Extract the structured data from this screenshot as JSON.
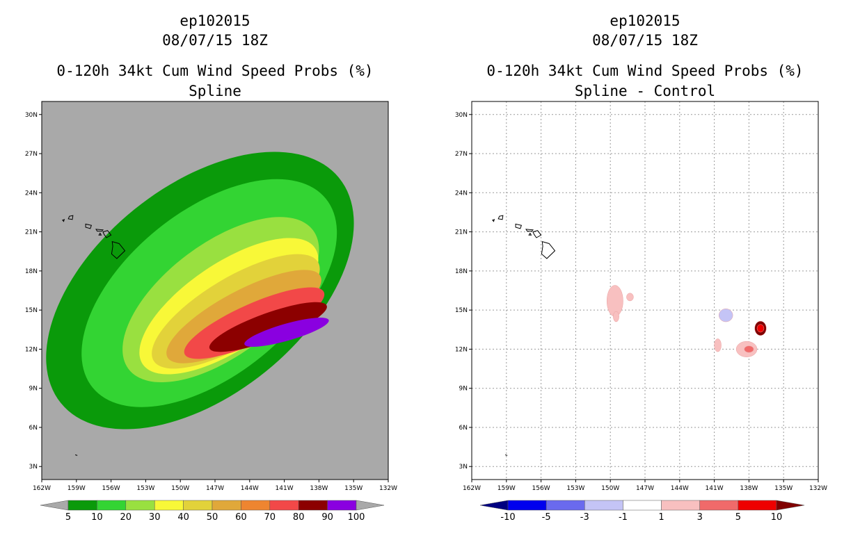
{
  "chart_data": [
    {
      "type": "heatmap",
      "storm_id": "ep102015",
      "datetime": "08/07/15 18Z",
      "title": "0-120h 34kt Cum Wind Speed Probs (%)",
      "subtitle": "Spline",
      "xlabel": "",
      "ylabel": "",
      "xlim": [
        -162,
        -132
      ],
      "ylim": [
        2,
        31
      ],
      "xticks": [
        "162W",
        "159W",
        "156W",
        "153W",
        "150W",
        "147W",
        "144W",
        "141W",
        "138W",
        "135W",
        "132W"
      ],
      "yticks": [
        "3N",
        "6N",
        "9N",
        "12N",
        "15N",
        "18N",
        "21N",
        "24N",
        "27N",
        "30N"
      ],
      "grid": false,
      "background": "#a9a9a9",
      "colorbar": {
        "levels": [
          "5",
          "10",
          "20",
          "30",
          "40",
          "50",
          "60",
          "70",
          "80",
          "90",
          "100"
        ],
        "colors": [
          "#a9a9a9",
          "#0a9a0a",
          "#33d433",
          "#99e040",
          "#f8f838",
          "#e2d23a",
          "#e0a83a",
          "#ee8530",
          "#f24848",
          "#8c0000",
          "#8a00e0",
          "#a9a9a9"
        ]
      },
      "contours": [
        {
          "level": 5,
          "color": "#0a9a0a",
          "center_lon": -148.3,
          "center_lat": 16.5,
          "semi_major_deg": 15.5,
          "semi_minor_deg": 8.0,
          "angle_deg": -39
        },
        {
          "level": 10,
          "color": "#33d433",
          "center_lon": -147.5,
          "center_lat": 16.3,
          "semi_major_deg": 13.0,
          "semi_minor_deg": 6.3,
          "angle_deg": -39
        },
        {
          "level": 20,
          "color": "#99e040",
          "center_lon": -146.5,
          "center_lat": 15.8,
          "semi_major_deg": 10.0,
          "semi_minor_deg": 4.3,
          "angle_deg": -37
        },
        {
          "level": 30,
          "color": "#f8f838",
          "center_lon": -145.8,
          "center_lat": 15.3,
          "semi_major_deg": 9.0,
          "semi_minor_deg": 3.3,
          "angle_deg": -34
        },
        {
          "level": 40,
          "color": "#e2d23a",
          "center_lon": -145.2,
          "center_lat": 14.9,
          "semi_major_deg": 8.3,
          "semi_minor_deg": 2.6,
          "angle_deg": -31
        },
        {
          "level": 50,
          "color": "#e0a83a",
          "center_lon": -144.5,
          "center_lat": 14.5,
          "semi_major_deg": 7.5,
          "semi_minor_deg": 2.0,
          "angle_deg": -28
        },
        {
          "level": 70,
          "color": "#f24848",
          "center_lon": -143.6,
          "center_lat": 14.0,
          "semi_major_deg": 6.6,
          "semi_minor_deg": 1.5,
          "angle_deg": -24
        },
        {
          "level": 80,
          "color": "#8c0000",
          "center_lon": -142.4,
          "center_lat": 13.7,
          "semi_major_deg": 5.4,
          "semi_minor_deg": 1.05,
          "angle_deg": -20
        },
        {
          "level": 90,
          "color": "#8a00e0",
          "center_lon": -140.8,
          "center_lat": 13.3,
          "semi_major_deg": 3.8,
          "semi_minor_deg": 0.65,
          "angle_deg": -16
        }
      ]
    },
    {
      "type": "heatmap",
      "storm_id": "ep102015",
      "datetime": "08/07/15 18Z",
      "title": "0-120h 34kt Cum Wind Speed Probs (%)",
      "subtitle": "Spline - Control",
      "xlabel": "",
      "ylabel": "",
      "xlim": [
        -162,
        -132
      ],
      "ylim": [
        2,
        31
      ],
      "xticks": [
        "162W",
        "159W",
        "156W",
        "153W",
        "150W",
        "147W",
        "144W",
        "141W",
        "138W",
        "135W",
        "132W"
      ],
      "yticks": [
        "3N",
        "6N",
        "9N",
        "12N",
        "15N",
        "18N",
        "21N",
        "24N",
        "27N",
        "30N"
      ],
      "grid": true,
      "background": "#ffffff",
      "colorbar": {
        "levels": [
          "-10",
          "-5",
          "-3",
          "-1",
          "1",
          "3",
          "5",
          "10"
        ],
        "colors": [
          "#000080",
          "#0000ee",
          "#6a6aee",
          "#c4c4f6",
          "#ffffff",
          "#f8c0c0",
          "#f06a6a",
          "#ee0000",
          "#800000"
        ]
      },
      "anomalies": [
        {
          "lon": -149.6,
          "lat": 15.7,
          "value": 2,
          "color": "#f8c0c0",
          "r_lon": 0.7,
          "r_lat": 1.2
        },
        {
          "lon": -149.5,
          "lat": 14.5,
          "value": 2,
          "color": "#f8c0c0",
          "r_lon": 0.25,
          "r_lat": 0.4
        },
        {
          "lon": -148.3,
          "lat": 16.0,
          "value": 2,
          "color": "#f8c0c0",
          "r_lon": 0.3,
          "r_lat": 0.3
        },
        {
          "lon": -140.0,
          "lat": 14.6,
          "value": -2,
          "color": "#c4c4f6",
          "r_lon": 0.6,
          "r_lat": 0.5
        },
        {
          "lon": -140.7,
          "lat": 12.3,
          "value": 2,
          "color": "#f8c0c0",
          "r_lon": 0.3,
          "r_lat": 0.5
        },
        {
          "lon": -138.2,
          "lat": 12.0,
          "value": 2,
          "color": "#f8c0c0",
          "r_lon": 0.9,
          "r_lat": 0.6
        },
        {
          "lon": -138.0,
          "lat": 12.0,
          "value": 4,
          "color": "#f06a6a",
          "r_lon": 0.4,
          "r_lat": 0.25
        },
        {
          "lon": -137.0,
          "lat": 13.6,
          "value": 11,
          "color": "#800000",
          "r_lon": 0.5,
          "r_lat": 0.55
        },
        {
          "lon": -137.0,
          "lat": 13.6,
          "value": 6,
          "color": "#ee0000",
          "r_lon": 0.3,
          "r_lat": 0.3
        }
      ]
    }
  ],
  "left_panel": {
    "storm": "ep102015",
    "datetime": "08/07/15 18Z",
    "title": "0-120h 34kt Cum Wind Speed Probs (%)",
    "subtitle": "Spline"
  },
  "right_panel": {
    "storm": "ep102015",
    "datetime": "08/07/15 18Z",
    "title": "0-120h 34kt Cum Wind Speed Probs (%)",
    "subtitle": "Spline - Control"
  }
}
